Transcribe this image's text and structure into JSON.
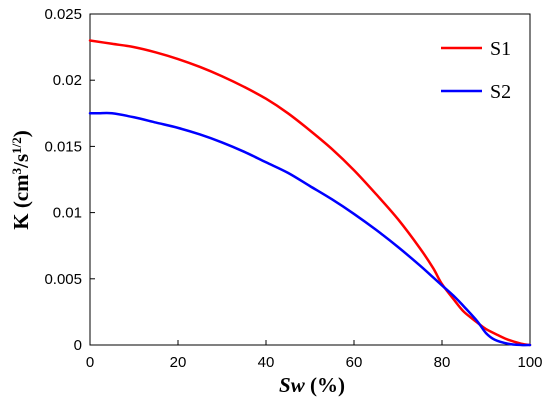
{
  "chart_data": {
    "type": "line",
    "title": "",
    "xlabel": {
      "italic_part": "Sw",
      "rest": " (%)"
    },
    "ylabel": {
      "base": "K (cm",
      "sup1": "3",
      "mid": "/s",
      "sup2": "1/2",
      "end": ")"
    },
    "xlim": [
      0,
      100
    ],
    "ylim": [
      0,
      0.025
    ],
    "xticks": [
      0,
      20,
      40,
      60,
      80,
      100
    ],
    "xtick_labels": [
      "0",
      "20",
      "40",
      "60",
      "80",
      "100"
    ],
    "yticks": [
      0,
      0.005,
      0.01,
      0.015,
      0.02,
      0.025
    ],
    "ytick_labels": [
      "0",
      "0.005",
      "0.01",
      "0.015",
      "0.02",
      "0.025"
    ],
    "grid": false,
    "legend_position": "top-right",
    "series": [
      {
        "name": "S1",
        "color": "#ff0000",
        "x": [
          0,
          5,
          10,
          15,
          20,
          25,
          30,
          35,
          40,
          45,
          50,
          55,
          60,
          65,
          70,
          75,
          78,
          80,
          83,
          85,
          88,
          90,
          93,
          95,
          98,
          100
        ],
        "y": [
          0.023,
          0.02275,
          0.0225,
          0.0221,
          0.0216,
          0.021,
          0.0203,
          0.0195,
          0.0186,
          0.0175,
          0.0162,
          0.0148,
          0.0132,
          0.0114,
          0.0095,
          0.0073,
          0.0058,
          0.0046,
          0.0033,
          0.0025,
          0.0017,
          0.0012,
          0.0007,
          0.0004,
          0.0001,
          0.0
        ]
      },
      {
        "name": "S2",
        "color": "#0000ff",
        "x": [
          0,
          2,
          5,
          10,
          15,
          20,
          25,
          30,
          35,
          40,
          45,
          50,
          55,
          60,
          65,
          70,
          75,
          78,
          80,
          83,
          85,
          88,
          90,
          92,
          95,
          98,
          100
        ],
        "y": [
          0.0175,
          0.0175,
          0.0175,
          0.0172,
          0.0168,
          0.0164,
          0.0159,
          0.0153,
          0.0146,
          0.0138,
          0.013,
          0.012,
          0.011,
          0.0099,
          0.0087,
          0.0074,
          0.006,
          0.0051,
          0.0045,
          0.0036,
          0.0029,
          0.0018,
          0.0009,
          0.0004,
          0.0001,
          0.0,
          0.0
        ]
      }
    ]
  }
}
